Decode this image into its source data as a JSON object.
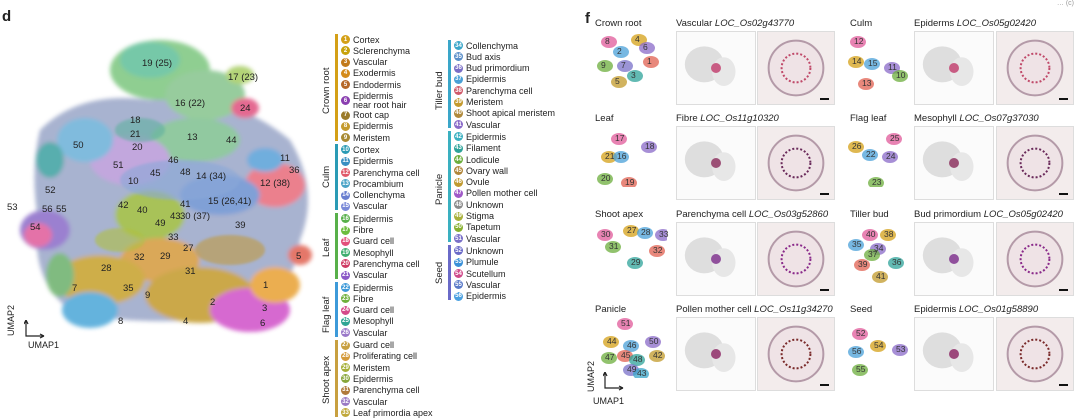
{
  "page_corner": "… (c)",
  "panel_d": {
    "letter": "d",
    "axis_y": "UMAP2",
    "axis_x": "UMAP1",
    "cluster_labels": [
      "19 (25)",
      "17 (23)",
      "16 (22)",
      "24",
      "18",
      "21",
      "13",
      "44",
      "50",
      "20",
      "46",
      "11",
      "36",
      "51",
      "12 (38)",
      "10",
      "45",
      "48",
      "14 (34)",
      "41",
      "15 (26,41)",
      "42",
      "40",
      "52",
      "56",
      "55",
      "53",
      "54",
      "49",
      "43",
      "30 (37)",
      "39",
      "33",
      "27",
      "28",
      "32",
      "29",
      "31",
      "7",
      "35",
      "9",
      "2",
      "3",
      "8",
      "4",
      "6",
      "1",
      "5"
    ]
  },
  "legend": {
    "groups": [
      {
        "name": "Crown root",
        "items": [
          [
            "1",
            "Cortex",
            "#d4a017"
          ],
          [
            "2",
            "Sclerenchyma",
            "#c8a20b"
          ],
          [
            "3",
            "Vascular",
            "#c27a1a"
          ],
          [
            "4",
            "Exodermis",
            "#d48b1b"
          ],
          [
            "5",
            "Endodermis",
            "#b5682a"
          ],
          [
            "6",
            "Epidermis near root hair",
            "#8a3fb0"
          ],
          [
            "7",
            "Root cap",
            "#9b7b2a"
          ],
          [
            "8",
            "Epidermis",
            "#c49a2c"
          ],
          [
            "9",
            "Meristem",
            "#a88a33"
          ]
        ]
      },
      {
        "name": "Culm",
        "items": [
          [
            "10",
            "Cortex",
            "#2a9bb5"
          ],
          [
            "11",
            "Epidermis",
            "#3a8fc2"
          ],
          [
            "12",
            "Parenchyma cell",
            "#e05a6a"
          ],
          [
            "13",
            "Procambium",
            "#4aa3c6"
          ],
          [
            "14",
            "Collenchyma",
            "#6a7fd0"
          ],
          [
            "15",
            "Vascular",
            "#7a8ad8"
          ]
        ]
      },
      {
        "name": "Leaf",
        "items": [
          [
            "16",
            "Epidermis",
            "#58b04a"
          ],
          [
            "17",
            "Fibre",
            "#6dbd3e"
          ],
          [
            "18",
            "Guard cell",
            "#e2507a"
          ],
          [
            "19",
            "Mesophyll",
            "#3fae6e"
          ],
          [
            "20",
            "Parenchyma cell",
            "#cf3a63"
          ],
          [
            "21",
            "Vascular",
            "#8b58c8"
          ]
        ]
      },
      {
        "name": "Flag leaf",
        "items": [
          [
            "22",
            "Epidermis",
            "#3d9ad9"
          ],
          [
            "23",
            "Fibre",
            "#6fb03c"
          ],
          [
            "24",
            "Guard cell",
            "#d44a8a"
          ],
          [
            "25",
            "Mesophyll",
            "#2fa594"
          ],
          [
            "26",
            "Vascular",
            "#9a78c9"
          ]
        ]
      },
      {
        "name": "Shoot apex",
        "items": [
          [
            "27",
            "Guard cell",
            "#c8a040"
          ],
          [
            "28",
            "Proliferating cell",
            "#d49a3a"
          ],
          [
            "29",
            "Meristem",
            "#a6b038"
          ],
          [
            "30",
            "Epidermis",
            "#88a63a"
          ],
          [
            "31",
            "Parenchyma cell",
            "#b07a3b"
          ],
          [
            "32",
            "Vascular",
            "#9a7ac4"
          ],
          [
            "33",
            "Leaf primordia apex",
            "#c0a83a"
          ]
        ]
      },
      {
        "name": "Tiller bud",
        "items": [
          [
            "34",
            "Collenchyma",
            "#3aa6c9"
          ],
          [
            "35",
            "Bud axis",
            "#5a8ec8"
          ],
          [
            "36",
            "Bud primordium",
            "#7a6ec6"
          ],
          [
            "37",
            "Epidermis",
            "#4aa0d6"
          ],
          [
            "38",
            "Parenchyma cell",
            "#d05a6a"
          ],
          [
            "39",
            "Meristem",
            "#c49a2e"
          ],
          [
            "40",
            "Shoot apical meristem",
            "#b08a3c"
          ],
          [
            "41",
            "Vascular",
            "#8a6ac8"
          ]
        ]
      },
      {
        "name": "Panicle",
        "items": [
          [
            "42",
            "Epidermis",
            "#3ab0c0"
          ],
          [
            "43",
            "Filament",
            "#2ea39a"
          ],
          [
            "44",
            "Lodicule",
            "#6cae3c"
          ],
          [
            "45",
            "Ovary wall",
            "#b0863a"
          ],
          [
            "46",
            "Ovule",
            "#c09a30"
          ],
          [
            "47",
            "Pollen mother cell",
            "#a05ac8"
          ],
          [
            "48",
            "Unknown",
            "#8a8a8a"
          ],
          [
            "49",
            "Stigma",
            "#a8b03a"
          ],
          [
            "50",
            "Tapetum",
            "#88b030"
          ],
          [
            "51",
            "Vascular",
            "#7a70c8"
          ]
        ]
      },
      {
        "name": "Seed",
        "items": [
          [
            "52",
            "Unknown",
            "#6a6ac8"
          ],
          [
            "53",
            "Plumule",
            "#3a90d8"
          ],
          [
            "54",
            "Scutellum",
            "#d04a8a"
          ],
          [
            "55",
            "Vascular",
            "#5a7ac8"
          ],
          [
            "56",
            "Epidermis",
            "#4aa0e0"
          ]
        ]
      }
    ]
  },
  "panel_f": {
    "letter": "f",
    "axis_y": "UMAP2",
    "axis_x": "UMAP1",
    "rows": [
      {
        "left": {
          "tissue": "Crown root",
          "cell": "Vascular",
          "gene": "LOC_Os02g43770",
          "nums": [
            "8",
            "4",
            "2",
            "6",
            "9",
            "1",
            "3",
            "5",
            "7"
          ]
        },
        "right": {
          "tissue": "Culm",
          "cell": "Epiderms",
          "gene": "LOC_Os05g02420",
          "nums": [
            "12",
            "14",
            "15",
            "11",
            "10",
            "13"
          ]
        }
      },
      {
        "left": {
          "tissue": "Leaf",
          "cell": "Fibre",
          "gene": "LOC_Os11g10320",
          "nums": [
            "17",
            "21",
            "16",
            "18",
            "20",
            "19"
          ]
        },
        "right": {
          "tissue": "Flag leaf",
          "cell": "Mesophyll",
          "gene": "LOC_Os07g37030",
          "nums": [
            "25",
            "26",
            "22",
            "24",
            "23"
          ]
        }
      },
      {
        "left": {
          "tissue": "Shoot apex",
          "cell": "Parenchyma cell",
          "gene": "LOC_Os03g52860",
          "nums": [
            "30",
            "27",
            "28",
            "33",
            "31",
            "32",
            "29"
          ]
        },
        "right": {
          "tissue": "Tiller bud",
          "cell": "Bud primordium",
          "gene": "LOC_Os05g02420",
          "nums": [
            "40",
            "38",
            "35",
            "34",
            "37",
            "39",
            "36",
            "41"
          ]
        }
      },
      {
        "left": {
          "tissue": "Panicle",
          "cell": "Pollen mother cell",
          "gene": "LOC_Os11g34270",
          "nums": [
            "51",
            "44",
            "46",
            "50",
            "47",
            "45",
            "48",
            "42",
            "49",
            "43"
          ]
        },
        "right": {
          "tissue": "Seed",
          "cell": "Epidermis",
          "gene": "LOC_Os01g58890",
          "nums": [
            "52",
            "54",
            "56",
            "53",
            "55"
          ]
        }
      }
    ]
  }
}
